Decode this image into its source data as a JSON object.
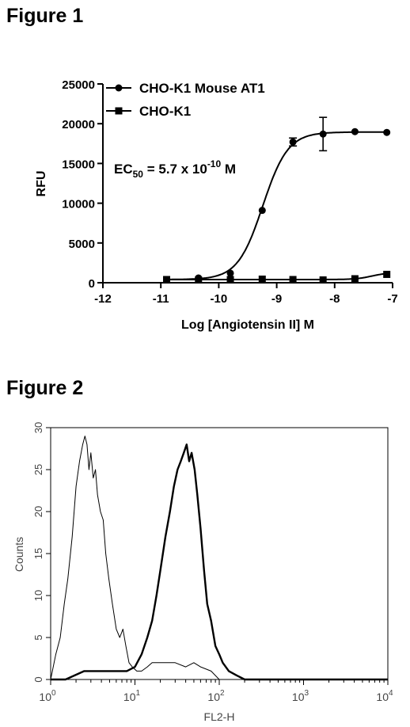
{
  "figures": {
    "fig1_title": "Figure 1",
    "fig2_title": "Figure 2"
  },
  "chart_data": [
    {
      "type": "line",
      "title": "",
      "xlabel": "Log [Angiotensin II] M",
      "ylabel": "RFU",
      "xlim": [
        -12,
        -7
      ],
      "ylim": [
        0,
        25000
      ],
      "x_ticks": [
        "-12",
        "-11",
        "-10",
        "-9",
        "-8",
        "-7"
      ],
      "y_ticks": [
        "0",
        "5000",
        "10000",
        "15000",
        "20000",
        "25000"
      ],
      "annotation": {
        "text": "EC",
        "sub": "50",
        "mid": " = 5.7 x 10",
        "sup": "-10",
        "end": " M"
      },
      "legend_position": "top-left",
      "series": [
        {
          "name": "CHO-K1 Mouse AT1",
          "marker": "circle",
          "x": [
            -10.9,
            -10.35,
            -9.8,
            -9.25,
            -8.72,
            -8.2,
            -7.65,
            -7.1
          ],
          "y": [
            400,
            600,
            1200,
            9100,
            17700,
            18700,
            19000,
            18900
          ],
          "err": [
            0,
            0,
            0,
            0,
            500,
            2100,
            0,
            0
          ],
          "fit": {
            "bottom": 400,
            "top": 18950,
            "logec50": -9.24,
            "hill": 2.0
          }
        },
        {
          "name": "CHO-K1",
          "marker": "square",
          "x": [
            -10.9,
            -10.35,
            -9.8,
            -9.25,
            -8.72,
            -8.2,
            -7.65,
            -7.1
          ],
          "y": [
            400,
            350,
            400,
            450,
            400,
            350,
            500,
            1050
          ],
          "err": [
            0,
            0,
            0,
            0,
            0,
            0,
            0,
            0
          ],
          "fit": {
            "bottom": 400,
            "top": 1300,
            "logec50": -7.35,
            "hill": 3.0
          }
        }
      ]
    },
    {
      "type": "line",
      "title": "",
      "xlabel": "FL2-H",
      "ylabel": "Counts",
      "xscale": "log",
      "xlim": [
        1,
        10000
      ],
      "ylim": [
        0,
        30
      ],
      "x_ticks": [
        {
          "base": "10",
          "exp": "0"
        },
        {
          "base": "10",
          "exp": "1"
        },
        {
          "base": "10",
          "exp": "2"
        },
        {
          "base": "10",
          "exp": "3"
        },
        {
          "base": "10",
          "exp": "4"
        }
      ],
      "y_ticks": [
        "0",
        "5",
        "10",
        "15",
        "20",
        "25",
        "30"
      ],
      "series": [
        {
          "style": "thin",
          "x": [
            1,
            1.15,
            1.3,
            1.45,
            1.6,
            1.8,
            2.0,
            2.2,
            2.4,
            2.55,
            2.7,
            2.85,
            3.0,
            3.2,
            3.4,
            3.6,
            3.9,
            4.2,
            4.5,
            4.9,
            5.4,
            6.0,
            6.6,
            7.2,
            7.8,
            8.5,
            9.3,
            10.5,
            12,
            14,
            16,
            20,
            25,
            30,
            40,
            50,
            60,
            80,
            100,
            150,
            10000
          ],
          "y": [
            0,
            3,
            5,
            9,
            12,
            17,
            23,
            26,
            28,
            29,
            28,
            25,
            27,
            24,
            25,
            22,
            20,
            19,
            15,
            12,
            9,
            6,
            5,
            6,
            4,
            2,
            1.5,
            1,
            1,
            1.5,
            2,
            2,
            2,
            2,
            1.5,
            2,
            1.5,
            1,
            0,
            0,
            0
          ]
        },
        {
          "style": "thick",
          "x": [
            1,
            1.5,
            2.5,
            4,
            6,
            8,
            10,
            12,
            14,
            16,
            18,
            20,
            23,
            26,
            29,
            32,
            35,
            38,
            41,
            44,
            47,
            51,
            55,
            60,
            66,
            72,
            80,
            90,
            100,
            110,
            130,
            160,
            200,
            10000
          ],
          "y": [
            0,
            0,
            1,
            1,
            1,
            1,
            1.5,
            3,
            5,
            7,
            10,
            13,
            17,
            20,
            23,
            25,
            26,
            27,
            28,
            26,
            27,
            25,
            22,
            18,
            13,
            9,
            7,
            4,
            3,
            2,
            1,
            0.5,
            0,
            0
          ]
        }
      ]
    }
  ]
}
